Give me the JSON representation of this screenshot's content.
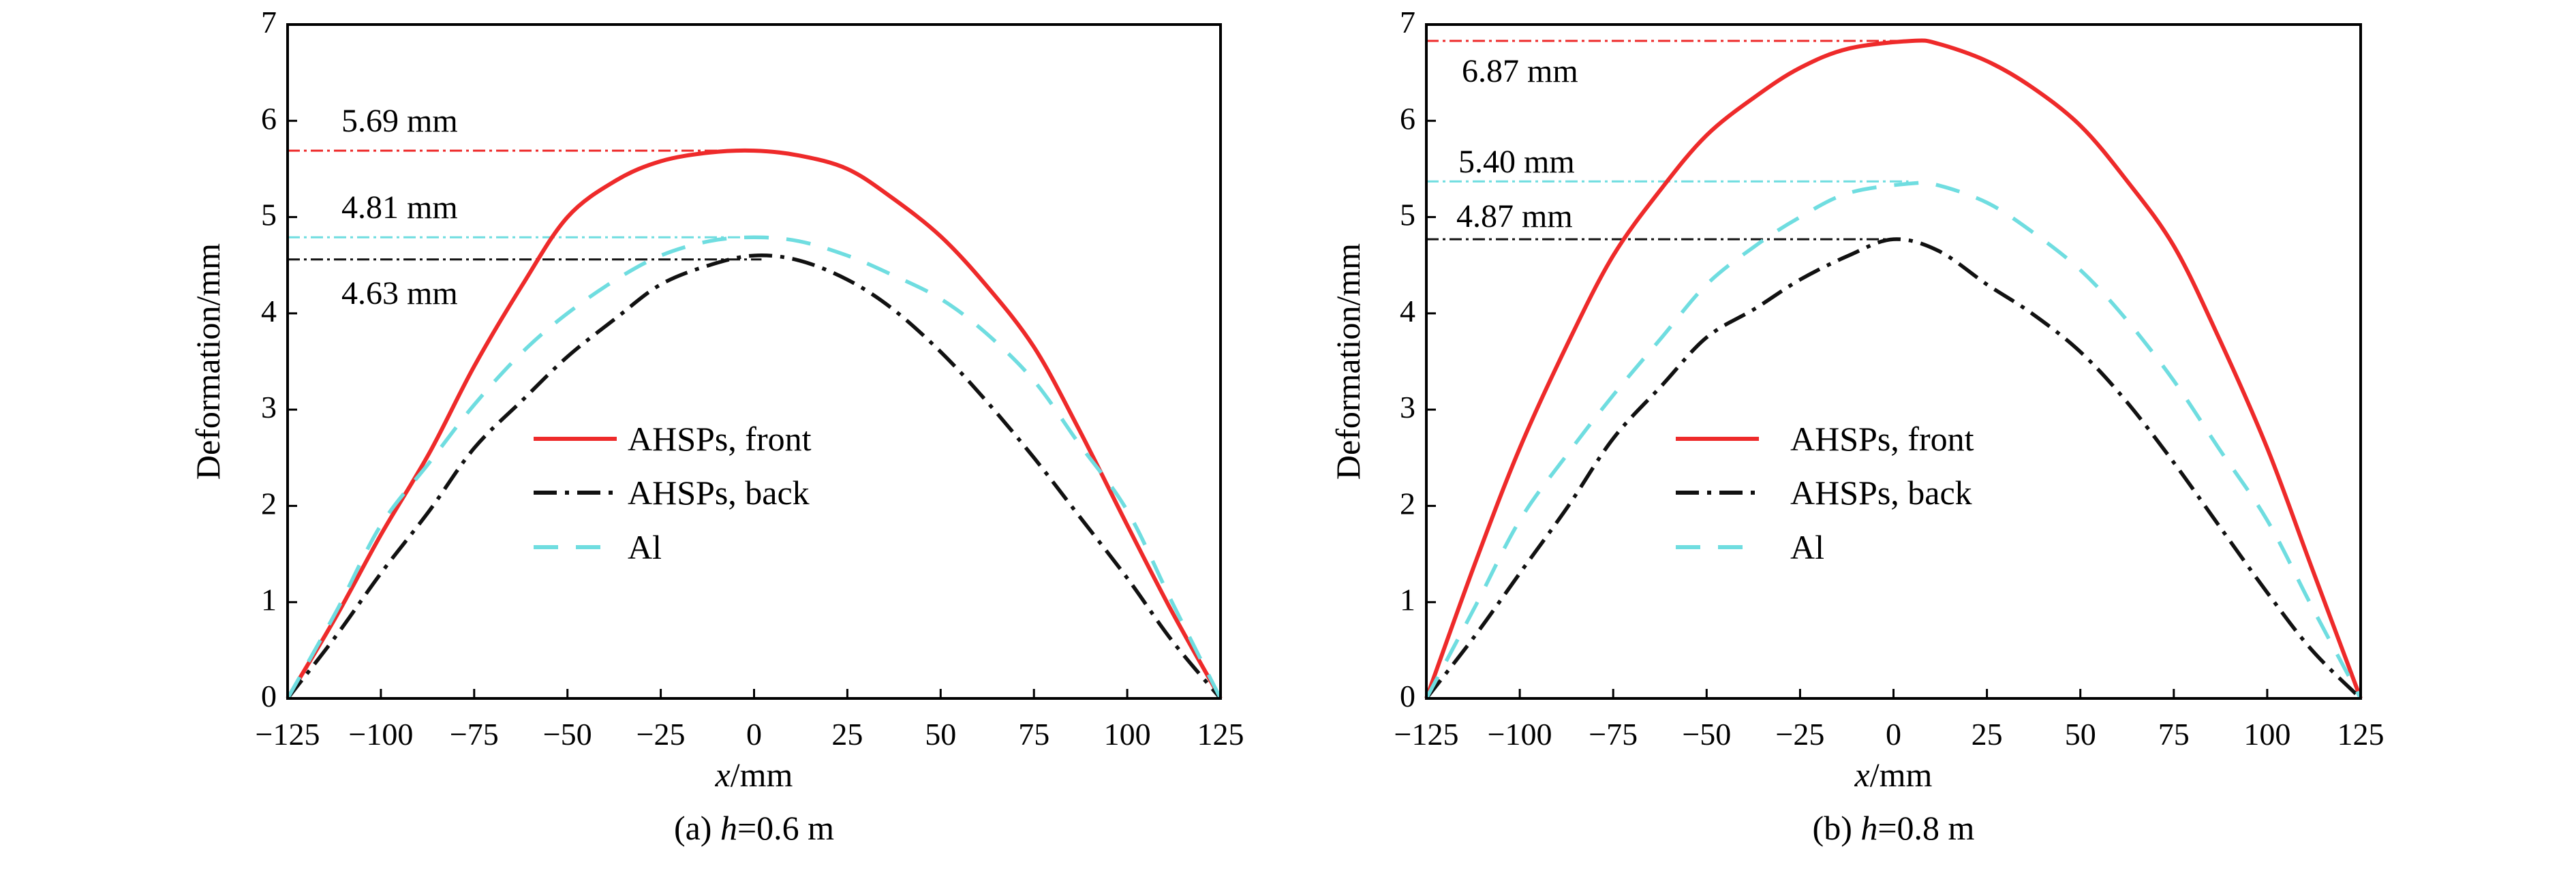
{
  "chart_data": [
    {
      "type": "line",
      "caption_prefix": "(a) ",
      "caption_var": "h",
      "caption_suffix": "=0.6 m",
      "xlabel_var": "x",
      "xlabel_unit": "/mm",
      "ylabel": "Deformation/mm",
      "xlim": [
        -125,
        125
      ],
      "ylim": [
        0,
        7
      ],
      "xticks": [
        -125,
        -100,
        -75,
        -50,
        -25,
        0,
        25,
        50,
        75,
        100,
        125
      ],
      "xtick_labels": [
        "−125",
        "−100",
        "−75",
        "−50",
        "−25",
        "0",
        "25",
        "50",
        "75",
        "100",
        "125"
      ],
      "yticks": [
        0,
        1,
        2,
        3,
        4,
        5,
        6,
        7
      ],
      "ytick_labels": [
        "0",
        "1",
        "2",
        "3",
        "4",
        "5",
        "6",
        "7"
      ],
      "legend_position": "center",
      "series": [
        {
          "name": "AHSPs, front",
          "color": "#ee2a2a",
          "style": "solid",
          "x": [
            -125,
            -112,
            -100,
            -87,
            -75,
            -62,
            -50,
            -37,
            -25,
            -12,
            0,
            12,
            25,
            37,
            50,
            62,
            75,
            87,
            100,
            112,
            125
          ],
          "y": [
            0,
            0.85,
            1.7,
            2.55,
            3.45,
            4.3,
            5.0,
            5.38,
            5.58,
            5.67,
            5.69,
            5.64,
            5.5,
            5.2,
            4.8,
            4.3,
            3.65,
            2.8,
            1.8,
            0.9,
            0
          ]
        },
        {
          "name": "AHSPs, back",
          "color": "#111111",
          "style": "dashdot",
          "x": [
            -125,
            -112,
            -100,
            -87,
            -75,
            -62,
            -50,
            -37,
            -25,
            -12,
            0,
            12,
            25,
            37,
            50,
            62,
            75,
            87,
            100,
            112,
            125
          ],
          "y": [
            0,
            0.65,
            1.3,
            1.95,
            2.6,
            3.1,
            3.55,
            3.95,
            4.3,
            4.5,
            4.6,
            4.55,
            4.35,
            4.05,
            3.6,
            3.1,
            2.5,
            1.9,
            1.25,
            0.6,
            0
          ]
        },
        {
          "name": "Al",
          "color": "#6fdde0",
          "style": "dashed",
          "x": [
            -125,
            -112,
            -100,
            -87,
            -75,
            -62,
            -50,
            -37,
            -25,
            -12,
            0,
            12,
            25,
            37,
            50,
            62,
            75,
            87,
            100,
            112,
            125
          ],
          "y": [
            0,
            0.9,
            1.8,
            2.45,
            3.05,
            3.6,
            4.0,
            4.35,
            4.6,
            4.75,
            4.79,
            4.75,
            4.6,
            4.4,
            4.15,
            3.8,
            3.3,
            2.65,
            1.95,
            1.0,
            0
          ]
        }
      ],
      "annotations": [
        {
          "text": "5.69 mm",
          "y": 5.69,
          "x_end": -2,
          "color": "#ee2a2a"
        },
        {
          "text": "4.81 mm",
          "y": 4.79,
          "x_end": -2,
          "color": "#6fdde0"
        },
        {
          "text": "4.63 mm",
          "y": 4.56,
          "x_end": 2,
          "color": "#111111"
        }
      ]
    },
    {
      "type": "line",
      "caption_prefix": "(b) ",
      "caption_var": "h",
      "caption_suffix": "=0.8 m",
      "xlabel_var": "x",
      "xlabel_unit": "/mm",
      "ylabel": "Deformation/mm",
      "xlim": [
        -125,
        125
      ],
      "ylim": [
        0,
        7
      ],
      "xticks": [
        -125,
        -100,
        -75,
        -50,
        -25,
        0,
        25,
        50,
        75,
        100,
        125
      ],
      "xtick_labels": [
        "−125",
        "−100",
        "−75",
        "−50",
        "−25",
        "0",
        "25",
        "50",
        "75",
        "100",
        "125"
      ],
      "yticks": [
        0,
        1,
        2,
        3,
        4,
        5,
        6,
        7
      ],
      "ytick_labels": [
        "0",
        "1",
        "2",
        "3",
        "4",
        "5",
        "6",
        "7"
      ],
      "legend_position": "center",
      "series": [
        {
          "name": "AHSPs, front",
          "color": "#ee2a2a",
          "style": "solid",
          "x": [
            -125,
            -112,
            -100,
            -87,
            -75,
            -62,
            -50,
            -37,
            -25,
            -12,
            5,
            12,
            25,
            37,
            50,
            62,
            75,
            87,
            100,
            112,
            125
          ],
          "y": [
            0,
            1.4,
            2.6,
            3.7,
            4.6,
            5.3,
            5.85,
            6.25,
            6.55,
            6.75,
            6.83,
            6.8,
            6.62,
            6.35,
            5.95,
            5.4,
            4.7,
            3.75,
            2.6,
            1.35,
            0
          ]
        },
        {
          "name": "AHSPs, back",
          "color": "#111111",
          "style": "dashdot",
          "x": [
            -125,
            -112,
            -100,
            -87,
            -75,
            -62,
            -50,
            -37,
            -25,
            -12,
            0,
            12,
            25,
            37,
            50,
            62,
            75,
            87,
            100,
            112,
            125
          ],
          "y": [
            0,
            0.65,
            1.3,
            2.0,
            2.7,
            3.25,
            3.75,
            4.05,
            4.35,
            4.6,
            4.77,
            4.65,
            4.3,
            4.0,
            3.6,
            3.1,
            2.45,
            1.8,
            1.1,
            0.5,
            0
          ]
        },
        {
          "name": "Al",
          "color": "#6fdde0",
          "style": "dashed",
          "x": [
            -125,
            -112,
            -100,
            -87,
            -75,
            -62,
            -50,
            -37,
            -25,
            -12,
            5,
            12,
            25,
            37,
            50,
            62,
            75,
            87,
            100,
            112,
            125
          ],
          "y": [
            0,
            0.95,
            1.85,
            2.55,
            3.15,
            3.75,
            4.3,
            4.7,
            5.0,
            5.25,
            5.35,
            5.33,
            5.15,
            4.85,
            4.45,
            3.95,
            3.3,
            2.6,
            1.85,
            0.95,
            0
          ]
        }
      ],
      "annotations": [
        {
          "text": "6.87 mm",
          "y": 6.83,
          "x_end": 4,
          "color": "#ee2a2a"
        },
        {
          "text": "5.40 mm",
          "y": 5.37,
          "x_end": 4,
          "color": "#6fdde0"
        },
        {
          "text": "4.87 mm",
          "y": 4.77,
          "x_end": 0,
          "color": "#111111"
        }
      ]
    }
  ]
}
